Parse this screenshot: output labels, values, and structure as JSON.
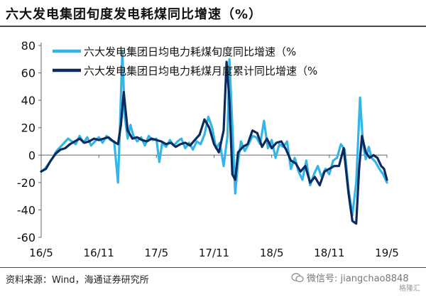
{
  "title": "六大发电集团旬度发电耗煤同比增速（%）",
  "source": "资料来源：Wind，海通证券研究所",
  "watermark": "微信号: jiangchao8848",
  "corner_mark": "格隆汇",
  "chart_data": {
    "type": "line",
    "title": "",
    "xlabel": "",
    "ylabel": "",
    "ylim": [
      -60,
      80
    ],
    "yticks": [
      -60,
      -40,
      -20,
      0,
      20,
      40,
      60,
      80
    ],
    "xlim": [
      0,
      36
    ],
    "xticks": [
      {
        "x": 0,
        "label": "16/5"
      },
      {
        "x": 6,
        "label": "16/11"
      },
      {
        "x": 12,
        "label": "17/5"
      },
      {
        "x": 18,
        "label": "17/11"
      },
      {
        "x": 24,
        "label": "18/5"
      },
      {
        "x": 30,
        "label": "18/11"
      },
      {
        "x": 36,
        "label": "19/5"
      }
    ],
    "grid": false,
    "legend": "top-left",
    "series": [
      {
        "name": "六大发电集团日均电力耗煤旬度同比增速（%",
        "color": "#33b5e8",
        "x": [
          0,
          0.4,
          0.8,
          1.2,
          1.6,
          2.0,
          2.4,
          2.8,
          3.2,
          3.6,
          4.0,
          4.4,
          4.8,
          5.2,
          5.6,
          6.0,
          6.4,
          6.8,
          7.2,
          7.6,
          8.0,
          8.2,
          8.45,
          8.7,
          9.0,
          9.3,
          9.6,
          10.0,
          10.4,
          10.8,
          11.2,
          11.6,
          12.0,
          12.3,
          12.6,
          13.0,
          13.4,
          13.8,
          14.2,
          14.6,
          15.0,
          15.4,
          15.8,
          16.2,
          16.6,
          17.0,
          17.4,
          17.8,
          18.2,
          18.6,
          19.0,
          19.4,
          19.6,
          19.9,
          20.2,
          20.5,
          20.8,
          21.2,
          21.6,
          22.0,
          22.4,
          22.8,
          23.2,
          23.6,
          24.0,
          24.4,
          24.8,
          25.2,
          25.6,
          26.0,
          26.4,
          26.8,
          27.2,
          27.6,
          28.0,
          28.4,
          28.8,
          29.2,
          29.6,
          30.0,
          30.4,
          30.8,
          31.2,
          31.6,
          32.0,
          32.4,
          32.8,
          33.2,
          33.5,
          33.8,
          34.1,
          34.4,
          34.8,
          35.2,
          35.6,
          36.0
        ],
        "values": [
          -12,
          -10,
          -6,
          -2,
          3,
          6,
          9,
          12,
          10,
          8,
          14,
          9,
          13,
          7,
          10,
          13,
          9,
          14,
          11,
          10,
          -20,
          20,
          76,
          28,
          12,
          22,
          14,
          10,
          13,
          7,
          14,
          11,
          12,
          -5,
          9,
          6,
          11,
          7,
          10,
          12,
          5,
          9,
          4,
          10,
          8,
          15,
          28,
          20,
          5,
          9,
          -8,
          14,
          70,
          22,
          -28,
          -5,
          10,
          3,
          8,
          14,
          13,
          8,
          25,
          5,
          11,
          -2,
          8,
          6,
          10,
          -10,
          -2,
          -12,
          -18,
          -4,
          -22,
          -14,
          -8,
          -16,
          -10,
          -14,
          -4,
          -2,
          8,
          4,
          -25,
          -44,
          -20,
          42,
          8,
          -3,
          6,
          -2,
          -5,
          -10,
          -14,
          -20
        ]
      },
      {
        "name": "六大发电集团日均电力耗煤月度累计同比增速（%",
        "color": "#0c2a5e",
        "x": [
          0,
          0.5,
          1.0,
          1.5,
          2.0,
          2.5,
          3.0,
          3.5,
          4.0,
          4.5,
          5.0,
          5.5,
          6.0,
          6.5,
          7.0,
          7.5,
          8.0,
          8.3,
          8.6,
          9.0,
          9.5,
          10.0,
          10.5,
          11.0,
          11.5,
          12.0,
          12.5,
          13.0,
          13.5,
          14.0,
          14.5,
          15.0,
          15.5,
          16.0,
          16.5,
          17.0,
          17.5,
          18.0,
          18.5,
          19.0,
          19.3,
          19.6,
          19.9,
          20.2,
          20.5,
          21.0,
          21.5,
          22.0,
          22.5,
          23.0,
          23.5,
          24.0,
          24.5,
          25.0,
          25.5,
          26.0,
          26.5,
          27.0,
          27.5,
          28.0,
          28.5,
          29.0,
          29.5,
          30.0,
          30.5,
          31.0,
          31.5,
          32.0,
          32.4,
          32.8,
          33.1,
          33.4,
          33.8,
          34.2,
          34.6,
          35.0,
          35.4,
          35.7,
          36.0
        ],
        "values": [
          -12,
          -10,
          -4,
          1,
          4,
          5,
          8,
          10,
          12,
          9,
          10,
          12,
          11,
          12,
          13,
          10,
          8,
          22,
          46,
          18,
          12,
          13,
          11,
          10,
          12,
          11,
          10,
          8,
          9,
          6,
          8,
          9,
          7,
          11,
          15,
          26,
          20,
          8,
          2,
          18,
          68,
          40,
          -14,
          -18,
          2,
          6,
          8,
          18,
          16,
          6,
          12,
          5,
          9,
          10,
          4,
          -4,
          -6,
          -12,
          -8,
          -20,
          -16,
          -22,
          -12,
          -10,
          -8,
          -8,
          5,
          -28,
          -48,
          -50,
          -10,
          14,
          2,
          -2,
          0,
          -2,
          -8,
          -10,
          -18
        ]
      }
    ]
  }
}
